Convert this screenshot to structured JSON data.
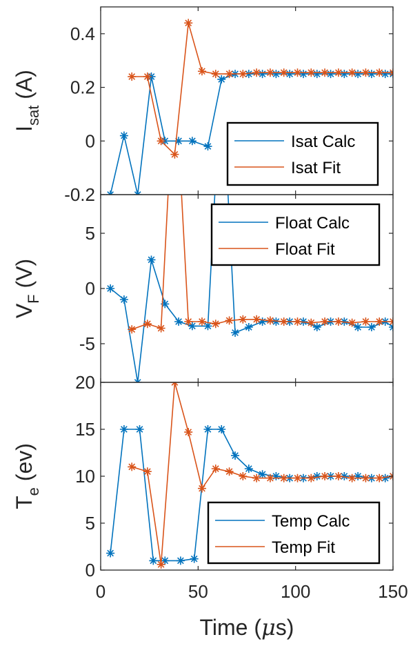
{
  "colors": {
    "calc": "#0072BD",
    "fit": "#D95319",
    "axis": "#262626"
  },
  "shared_xlabel": {
    "main": "Time (",
    "mu": "μ",
    "unit": "s)"
  },
  "chart_data": [
    {
      "type": "line",
      "ylabel": {
        "main": "I",
        "sub": "sat",
        "unit": " (A)"
      },
      "xlim": [
        0,
        150
      ],
      "ylim": [
        -0.2,
        0.5
      ],
      "yticks": [
        -0.2,
        0,
        0.2,
        0.4
      ],
      "ytick_labels": [
        "-0.2",
        "0",
        "0.2",
        "0.4"
      ],
      "xticks": [
        0,
        50,
        100,
        150
      ],
      "xtick_labels": [],
      "legend_position": "bottom-right",
      "series": [
        {
          "name": "Isat Calc",
          "color": "calc",
          "x": [
            5,
            12,
            19,
            26,
            33,
            40,
            47,
            55,
            62,
            69,
            76,
            83,
            90,
            97,
            104,
            111,
            118,
            125,
            132,
            139,
            146,
            150
          ],
          "y": [
            -0.2,
            0.02,
            -0.2,
            0.24,
            0.0,
            0.0,
            0.0,
            -0.02,
            0.23,
            0.25,
            0.25,
            0.25,
            0.25,
            0.25,
            0.25,
            0.25,
            0.25,
            0.25,
            0.25,
            0.25,
            0.25,
            0.25
          ]
        },
        {
          "name": "Isat Fit",
          "color": "fit",
          "x": [
            16,
            24,
            31,
            38,
            45,
            52,
            59,
            66,
            73,
            80,
            87,
            94,
            101,
            108,
            115,
            122,
            129,
            136,
            143,
            150
          ],
          "y": [
            0.24,
            0.24,
            0.0,
            -0.05,
            0.44,
            0.26,
            0.25,
            0.25,
            0.25,
            0.255,
            0.255,
            0.255,
            0.255,
            0.255,
            0.255,
            0.255,
            0.255,
            0.255,
            0.255,
            0.255
          ]
        }
      ]
    },
    {
      "type": "line",
      "ylabel": {
        "main": "V",
        "sub": "F",
        "unit": " (V)"
      },
      "xlim": [
        0,
        150
      ],
      "ylim": [
        -8.5,
        8.5
      ],
      "yticks": [
        -5,
        0,
        5
      ],
      "ytick_labels": [
        "-5",
        "0",
        "5"
      ],
      "xticks": [
        0,
        50,
        100,
        150
      ],
      "xtick_labels": [],
      "legend_position": "top-right",
      "series": [
        {
          "name": "Float Calc",
          "color": "calc",
          "x": [
            5,
            12,
            19,
            26,
            33,
            40,
            47,
            55,
            62,
            69,
            76,
            83,
            90,
            97,
            104,
            111,
            118,
            125,
            132,
            139,
            146,
            150
          ],
          "y": [
            0.0,
            -1.0,
            -8.5,
            2.6,
            -1.4,
            -3.0,
            -3.4,
            -3.4,
            20,
            -4.0,
            -3.5,
            -3.0,
            -3.0,
            -3.0,
            -3.0,
            -3.5,
            -3.0,
            -3.0,
            -3.5,
            -3.5,
            -3.0,
            -3.5
          ]
        },
        {
          "name": "Float Fit",
          "color": "fit",
          "x": [
            16,
            24,
            31,
            38,
            45,
            52,
            59,
            66,
            73,
            80,
            87,
            94,
            101,
            108,
            115,
            122,
            129,
            136,
            143,
            150
          ],
          "y": [
            -3.7,
            -3.2,
            -3.6,
            20,
            -3.0,
            -3.0,
            -3.2,
            -2.9,
            -2.8,
            -2.8,
            -2.9,
            -3.0,
            -3.0,
            -3.1,
            -3.0,
            -3.0,
            -3.1,
            -3.0,
            -3.0,
            -3.0
          ]
        }
      ]
    },
    {
      "type": "line",
      "ylabel": {
        "main": "T",
        "sub": "e",
        "unit": " (ev)"
      },
      "xlim": [
        0,
        150
      ],
      "ylim": [
        0,
        20
      ],
      "yticks": [
        0,
        5,
        10,
        15,
        20
      ],
      "ytick_labels": [
        "0",
        "5",
        "10",
        "15",
        "20"
      ],
      "xticks": [
        0,
        50,
        100,
        150
      ],
      "xtick_labels": [
        "0",
        "50",
        "100",
        "150"
      ],
      "legend_position": "bottom-right",
      "series": [
        {
          "name": "Temp Calc",
          "color": "calc",
          "x": [
            5,
            12,
            20,
            27,
            33,
            41,
            48,
            55,
            62,
            69,
            76,
            83,
            90,
            97,
            104,
            111,
            118,
            125,
            132,
            139,
            146,
            150
          ],
          "y": [
            1.8,
            15,
            15,
            1.0,
            1.0,
            1.0,
            1.2,
            15,
            15,
            12.2,
            10.8,
            10.2,
            10.0,
            9.8,
            9.8,
            10.0,
            10.0,
            10.0,
            10.0,
            9.8,
            9.8,
            10.0
          ]
        },
        {
          "name": "Temp Fit",
          "color": "fit",
          "x": [
            16,
            24,
            31,
            38,
            45,
            52,
            59,
            66,
            73,
            80,
            87,
            94,
            101,
            108,
            115,
            122,
            129,
            136,
            143,
            150
          ],
          "y": [
            11.0,
            10.5,
            0.6,
            20,
            14.7,
            8.7,
            10.8,
            10.5,
            10.0,
            9.8,
            9.8,
            9.8,
            9.8,
            9.8,
            10.0,
            10.0,
            9.8,
            9.8,
            9.8,
            10.0
          ]
        }
      ]
    }
  ]
}
